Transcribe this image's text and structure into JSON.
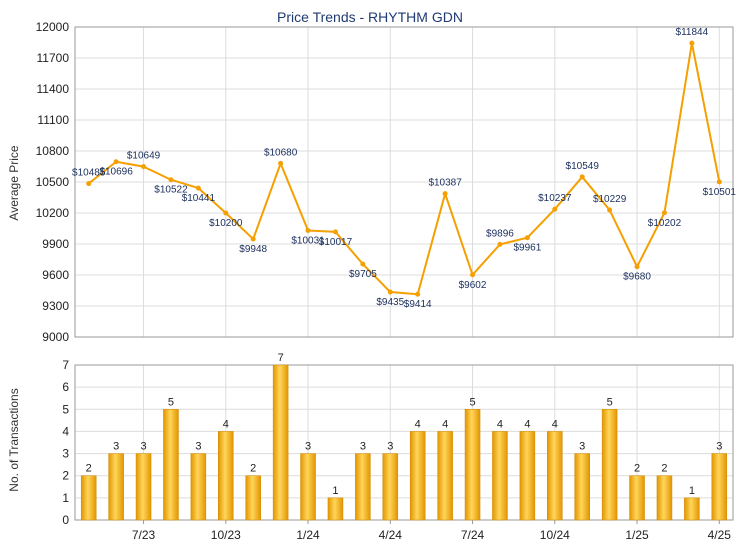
{
  "chart_data": [
    {
      "type": "line",
      "title": "Price Trends - RHYTHM GDN",
      "ylabel": "Average Price",
      "ylim": [
        9000,
        12000
      ],
      "yticks": [
        9000,
        9300,
        9600,
        9900,
        10200,
        10500,
        10800,
        11100,
        11400,
        11700,
        12000
      ],
      "color": "#f5a000",
      "series": [
        {
          "values": [
            10485,
            10696,
            10649,
            10522,
            10441,
            10200,
            9948,
            10680,
            10031,
            10017,
            9705,
            9435,
            9414,
            10387,
            9602,
            9896,
            9961,
            10237,
            10549,
            10229,
            9680,
            10202,
            11844,
            10501
          ],
          "labels": [
            "$10485",
            "$10696",
            "$10649",
            "$10522",
            "$10441",
            "$10200",
            "$9948",
            "$10680",
            "$10031",
            "$10017",
            "$9705",
            "$9435",
            "$9414",
            "$10387",
            "$9602",
            "$9896",
            "$9961",
            "$10237",
            "$10549",
            "$10229",
            "$9680",
            "$10202",
            "$11844",
            "$10501"
          ]
        }
      ],
      "grid": true
    },
    {
      "type": "bar",
      "ylabel": "No. of Transactions",
      "ylim": [
        0,
        7
      ],
      "yticks": [
        "0",
        "1",
        "2",
        "3",
        "4",
        "5",
        "6",
        "7"
      ],
      "xticks": [
        "7/23",
        "10/23",
        "1/24",
        "4/24",
        "7/24",
        "10/24",
        "1/25",
        "4/25"
      ],
      "color": "#f2b320",
      "values": [
        2,
        3,
        3,
        5,
        3,
        4,
        2,
        7,
        3,
        1,
        3,
        3,
        4,
        4,
        5,
        4,
        4,
        4,
        3,
        5,
        2,
        2,
        1,
        3
      ],
      "grid": true
    }
  ]
}
